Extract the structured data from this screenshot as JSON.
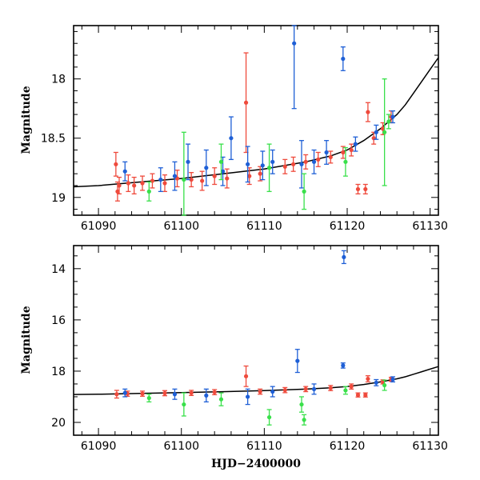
{
  "chart_data": [
    {
      "type": "scatter",
      "panel": "top",
      "xlabel": "",
      "ylabel": "Magnitude",
      "xlim": [
        61087,
        61131
      ],
      "ylim": [
        19.15,
        17.55
      ],
      "y_inverted": true,
      "xticks": [
        61090,
        61100,
        61110,
        61120,
        61130
      ],
      "yticks": [
        18,
        18.5,
        19
      ],
      "xtick_labels": [
        "61090",
        "61100",
        "61110",
        "61120",
        "61130"
      ],
      "ytick_labels": [
        "18",
        "18.5",
        "19"
      ],
      "model_curve": {
        "x": [
          61087,
          61090,
          61095,
          61100,
          61105,
          61110,
          61115,
          61118,
          61120,
          61122,
          61124,
          61126,
          61127,
          61128,
          61129,
          61130,
          61131
        ],
        "y": [
          18.91,
          18.9,
          18.87,
          18.84,
          18.8,
          18.76,
          18.7,
          18.65,
          18.6,
          18.52,
          18.42,
          18.3,
          18.22,
          18.12,
          18.02,
          17.92,
          17.82
        ]
      },
      "series": [
        {
          "name": "red",
          "color": "#ef4a3c",
          "points": [
            {
              "x": 61092.1,
              "y": 18.72,
              "err": 0.1
            },
            {
              "x": 61092.3,
              "y": 18.95,
              "err": 0.08
            },
            {
              "x": 61092.5,
              "y": 18.9,
              "err": 0.07
            },
            {
              "x": 61093.6,
              "y": 18.88,
              "err": 0.07
            },
            {
              "x": 61094.3,
              "y": 18.9,
              "err": 0.07
            },
            {
              "x": 61095.3,
              "y": 18.88,
              "err": 0.06
            },
            {
              "x": 61096.5,
              "y": 18.86,
              "err": 0.06
            },
            {
              "x": 61098.0,
              "y": 18.88,
              "err": 0.07
            },
            {
              "x": 61099.5,
              "y": 18.84,
              "err": 0.07
            },
            {
              "x": 61101.2,
              "y": 18.85,
              "err": 0.06
            },
            {
              "x": 61102.5,
              "y": 18.86,
              "err": 0.08
            },
            {
              "x": 61104.0,
              "y": 18.82,
              "err": 0.07
            },
            {
              "x": 61105.5,
              "y": 18.84,
              "err": 0.08
            },
            {
              "x": 61107.8,
              "y": 18.2,
              "err": 0.42
            },
            {
              "x": 61108.2,
              "y": 18.82,
              "err": 0.07
            },
            {
              "x": 61109.5,
              "y": 18.8,
              "err": 0.06
            },
            {
              "x": 61112.5,
              "y": 18.74,
              "err": 0.06
            },
            {
              "x": 61113.5,
              "y": 18.72,
              "err": 0.06
            },
            {
              "x": 61115.0,
              "y": 18.7,
              "err": 0.06
            },
            {
              "x": 61116.5,
              "y": 18.68,
              "err": 0.06
            },
            {
              "x": 61118.0,
              "y": 18.66,
              "err": 0.05
            },
            {
              "x": 61119.5,
              "y": 18.62,
              "err": 0.05
            },
            {
              "x": 61120.5,
              "y": 18.6,
              "err": 0.05
            },
            {
              "x": 61121.3,
              "y": 18.93,
              "err": 0.04
            },
            {
              "x": 61122.2,
              "y": 18.93,
              "err": 0.04
            },
            {
              "x": 61122.5,
              "y": 18.28,
              "err": 0.08
            },
            {
              "x": 61123.2,
              "y": 18.5,
              "err": 0.05
            },
            {
              "x": 61124.3,
              "y": 18.42,
              "err": 0.05
            },
            {
              "x": 61125.3,
              "y": 18.32,
              "err": 0.05
            }
          ]
        },
        {
          "name": "blue",
          "color": "#1e5fd6",
          "points": [
            {
              "x": 61093.2,
              "y": 18.78,
              "err": 0.08
            },
            {
              "x": 61097.5,
              "y": 18.85,
              "err": 0.1
            },
            {
              "x": 61099.2,
              "y": 18.82,
              "err": 0.12
            },
            {
              "x": 61100.8,
              "y": 18.7,
              "err": 0.15
            },
            {
              "x": 61103.0,
              "y": 18.75,
              "err": 0.15
            },
            {
              "x": 61105.0,
              "y": 18.78,
              "err": 0.12
            },
            {
              "x": 61106.0,
              "y": 18.5,
              "err": 0.18
            },
            {
              "x": 61108.0,
              "y": 18.72,
              "err": 0.15
            },
            {
              "x": 61109.8,
              "y": 18.73,
              "err": 0.12
            },
            {
              "x": 61111.0,
              "y": 18.7,
              "err": 0.1
            },
            {
              "x": 61113.6,
              "y": 17.7,
              "err": 0.55
            },
            {
              "x": 61114.5,
              "y": 18.72,
              "err": 0.2
            },
            {
              "x": 61116.0,
              "y": 18.7,
              "err": 0.1
            },
            {
              "x": 61117.5,
              "y": 18.62,
              "err": 0.1
            },
            {
              "x": 61119.5,
              "y": 17.83,
              "err": 0.1
            },
            {
              "x": 61121.0,
              "y": 18.55,
              "err": 0.06
            },
            {
              "x": 61123.5,
              "y": 18.45,
              "err": 0.06
            },
            {
              "x": 61125.5,
              "y": 18.32,
              "err": 0.05
            }
          ]
        },
        {
          "name": "green",
          "color": "#39e04a",
          "points": [
            {
              "x": 61096.1,
              "y": 18.95,
              "err": 0.08
            },
            {
              "x": 61100.3,
              "y": 18.85,
              "err": 0.4
            },
            {
              "x": 61104.8,
              "y": 18.7,
              "err": 0.15
            },
            {
              "x": 61110.6,
              "y": 18.75,
              "err": 0.2
            },
            {
              "x": 61114.8,
              "y": 18.95,
              "err": 0.15
            },
            {
              "x": 61119.8,
              "y": 18.7,
              "err": 0.12
            },
            {
              "x": 61124.5,
              "y": 18.45,
              "err": 0.45
            },
            {
              "x": 61125.0,
              "y": 18.36,
              "err": 0.06
            }
          ]
        }
      ]
    },
    {
      "type": "scatter",
      "panel": "bottom",
      "xlabel": "HJD−2400000",
      "ylabel": "Magnitude",
      "xlim": [
        61087,
        61131
      ],
      "ylim": [
        20.5,
        13.1
      ],
      "y_inverted": true,
      "xticks": [
        61090,
        61100,
        61110,
        61120,
        61130
      ],
      "yticks": [
        14,
        16,
        18,
        20
      ],
      "xtick_labels": [
        "61090",
        "61100",
        "61110",
        "61120",
        "61130"
      ],
      "ytick_labels": [
        "14",
        "16",
        "18",
        "20"
      ],
      "model_curve": {
        "x": [
          61087,
          61090,
          61095,
          61100,
          61105,
          61110,
          61115,
          61118,
          61120,
          61122,
          61124,
          61126,
          61127,
          61128,
          61129,
          61130,
          61131
        ],
        "y": [
          18.91,
          18.9,
          18.87,
          18.84,
          18.8,
          18.76,
          18.7,
          18.65,
          18.6,
          18.52,
          18.42,
          18.3,
          18.22,
          18.12,
          18.02,
          17.92,
          17.82
        ]
      },
      "series": [
        {
          "name": "red",
          "color": "#ef4a3c",
          "points": [
            {
              "x": 61092.2,
              "y": 18.9,
              "err": 0.15
            },
            {
              "x": 61093.5,
              "y": 18.88,
              "err": 0.1
            },
            {
              "x": 61095.3,
              "y": 18.88,
              "err": 0.1
            },
            {
              "x": 61098.0,
              "y": 18.86,
              "err": 0.1
            },
            {
              "x": 61101.2,
              "y": 18.85,
              "err": 0.1
            },
            {
              "x": 61104.0,
              "y": 18.82,
              "err": 0.1
            },
            {
              "x": 61107.8,
              "y": 18.2,
              "err": 0.4
            },
            {
              "x": 61109.5,
              "y": 18.8,
              "err": 0.1
            },
            {
              "x": 61112.5,
              "y": 18.74,
              "err": 0.1
            },
            {
              "x": 61115.0,
              "y": 18.7,
              "err": 0.1
            },
            {
              "x": 61118.0,
              "y": 18.66,
              "err": 0.1
            },
            {
              "x": 61120.5,
              "y": 18.6,
              "err": 0.1
            },
            {
              "x": 61121.3,
              "y": 18.93,
              "err": 0.08
            },
            {
              "x": 61122.2,
              "y": 18.93,
              "err": 0.08
            },
            {
              "x": 61122.5,
              "y": 18.3,
              "err": 0.12
            },
            {
              "x": 61124.3,
              "y": 18.42,
              "err": 0.08
            },
            {
              "x": 61125.3,
              "y": 18.32,
              "err": 0.08
            }
          ]
        },
        {
          "name": "blue",
          "color": "#1e5fd6",
          "points": [
            {
              "x": 61093.2,
              "y": 18.85,
              "err": 0.15
            },
            {
              "x": 61099.2,
              "y": 18.9,
              "err": 0.2
            },
            {
              "x": 61103.0,
              "y": 18.95,
              "err": 0.25
            },
            {
              "x": 61108.0,
              "y": 19.0,
              "err": 0.3
            },
            {
              "x": 61111.0,
              "y": 18.8,
              "err": 0.2
            },
            {
              "x": 61114.0,
              "y": 17.6,
              "err": 0.45
            },
            {
              "x": 61116.0,
              "y": 18.7,
              "err": 0.2
            },
            {
              "x": 61119.5,
              "y": 17.78,
              "err": 0.1
            },
            {
              "x": 61119.6,
              "y": 13.55,
              "err": 0.25
            },
            {
              "x": 61123.5,
              "y": 18.45,
              "err": 0.12
            },
            {
              "x": 61125.5,
              "y": 18.32,
              "err": 0.1
            }
          ]
        },
        {
          "name": "green",
          "color": "#39e04a",
          "points": [
            {
              "x": 61096.1,
              "y": 19.05,
              "err": 0.15
            },
            {
              "x": 61100.3,
              "y": 19.3,
              "err": 0.45
            },
            {
              "x": 61104.8,
              "y": 19.1,
              "err": 0.25
            },
            {
              "x": 61110.6,
              "y": 19.8,
              "err": 0.3
            },
            {
              "x": 61114.8,
              "y": 19.9,
              "err": 0.2
            },
            {
              "x": 61114.5,
              "y": 19.3,
              "err": 0.3
            },
            {
              "x": 61119.8,
              "y": 18.75,
              "err": 0.15
            },
            {
              "x": 61124.5,
              "y": 18.55,
              "err": 0.2
            }
          ]
        }
      ]
    }
  ]
}
